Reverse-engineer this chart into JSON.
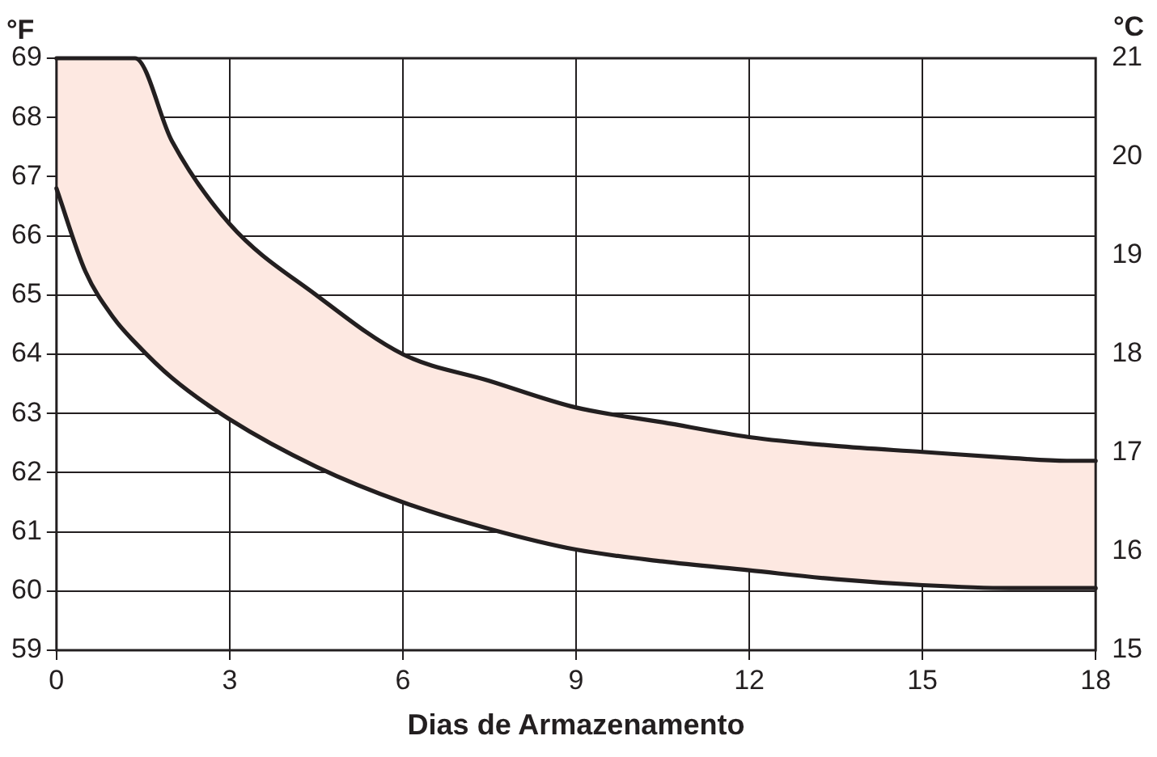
{
  "chart_data": {
    "type": "line",
    "xlabel": "Dias de Armazenamento",
    "ylabel": "°F",
    "y2label": "°C",
    "x": [
      0,
      0.5,
      1,
      1.36,
      2,
      3,
      4.5,
      6,
      7.5,
      9,
      10.5,
      12,
      13.5,
      15,
      16.5,
      17.5,
      18
    ],
    "series": [
      {
        "type": "line",
        "color": "#231f20",
        "values": [
          66.8,
          65.4,
          64.6,
          64.2,
          63.6,
          62.9,
          62.1,
          61.5,
          61.05,
          60.7,
          60.5,
          60.35,
          60.2,
          60.1,
          60.05,
          60.05,
          60.05
        ]
      },
      {
        "type": "area",
        "color": "#fde8e1",
        "values": [
          69,
          69,
          69,
          69,
          67.6,
          66.2,
          65.0,
          64.0,
          63.55,
          63.1,
          62.85,
          62.6,
          62.45,
          62.35,
          62.25,
          62.2,
          62.2
        ]
      }
    ],
    "xlim": [
      0,
      18
    ],
    "xticks": [
      0,
      3,
      6,
      9,
      12,
      15,
      18
    ],
    "ylim": [
      59,
      69
    ],
    "yticks": [
      59,
      60,
      61,
      62,
      63,
      64,
      65,
      66,
      67,
      68,
      69
    ],
    "y2lim": [
      15,
      21
    ],
    "y2ticks": [
      15,
      16,
      17,
      18,
      19,
      20,
      21
    ],
    "grid": true,
    "legend": false,
    "marker": "none",
    "line_style": "solid"
  }
}
